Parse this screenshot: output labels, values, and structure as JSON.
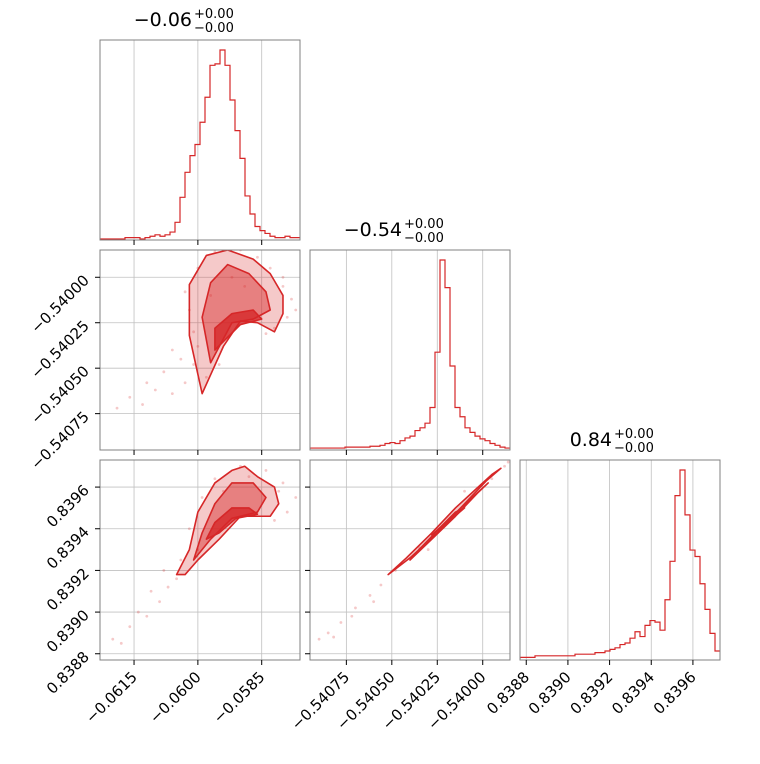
{
  "chart_data": {
    "type": "corner",
    "style": {
      "color": "#d62728",
      "grid": true
    },
    "parameters": [
      {
        "title_main": "−0.06",
        "title_plus": "+0.00",
        "title_minus": "−0.00",
        "range": [
          -0.0623,
          -0.0576
        ],
        "ticks": [
          -0.0615,
          -0.06,
          -0.0585
        ],
        "tick_labels": [
          "−0.0615",
          "−0.0600",
          "−0.0585"
        ]
      },
      {
        "title_main": "−0.54",
        "title_plus": "+0.00",
        "title_minus": "−0.00",
        "range": [
          -0.54095,
          -0.53985
        ],
        "ticks": [
          -0.54075,
          -0.5405,
          -0.54025,
          -0.54
        ],
        "tick_labels": [
          "−0.54075",
          "−0.54050",
          "−0.54025",
          "−0.54000"
        ]
      },
      {
        "title_main": "0.84",
        "title_plus": "+0.00",
        "title_minus": "−0.00",
        "range": [
          0.83877,
          0.83973
        ],
        "ticks": [
          0.8388,
          0.839,
          0.8392,
          0.8394,
          0.8396
        ],
        "tick_labels": [
          "0.8388",
          "0.8390",
          "0.8392",
          "0.8394",
          "0.8396"
        ]
      }
    ],
    "histograms": [
      {
        "edges_start": -0.0623,
        "bin_width": 0.0001175,
        "counts": [
          0,
          0,
          0,
          0,
          0,
          1,
          1,
          1,
          0,
          1,
          2,
          3,
          2,
          3,
          5,
          12,
          30,
          48,
          60,
          68,
          84,
          102,
          125,
          126,
          136,
          125,
          100,
          78,
          58,
          31,
          18,
          9,
          6,
          4,
          2,
          1,
          1,
          2,
          1,
          1
        ]
      },
      {
        "edges_start": -0.54095,
        "bin_width": 2.75e-05,
        "counts": [
          1,
          1,
          1,
          1,
          1,
          1,
          1,
          2,
          2,
          2,
          2,
          2,
          3,
          3,
          4,
          6,
          7,
          6,
          9,
          12,
          14,
          20,
          23,
          28,
          45,
          105,
          205,
          175,
          90,
          45,
          35,
          23,
          18,
          14,
          11,
          9,
          6,
          4,
          2,
          1
        ]
      },
      {
        "edges_start": 0.83877,
        "bin_width": 2.4e-05,
        "counts": [
          1,
          1,
          1,
          2,
          2,
          2,
          2,
          2,
          2,
          2,
          2,
          3,
          3,
          3,
          3,
          4,
          4,
          5,
          6,
          7,
          9,
          10,
          13,
          17,
          14,
          21,
          24,
          23,
          18,
          37,
          61,
          102,
          118,
          90,
          68,
          64,
          47,
          31,
          16,
          5
        ]
      }
    ],
    "scatter_plots": [
      {
        "x_param": 0,
        "y_param": 1,
        "contours": [
          {
            "level": "outer",
            "points": [
              [
                -0.0599,
                -0.54064
              ],
              [
                -0.0602,
                -0.54032
              ],
              [
                -0.0602,
                -0.54004
              ],
              [
                -0.0598,
                -0.53988
              ],
              [
                -0.0593,
                -0.53985
              ],
              [
                -0.0587,
                -0.5399
              ],
              [
                -0.0583,
                -0.53998
              ],
              [
                -0.058,
                -0.5401
              ],
              [
                -0.058,
                -0.5402
              ],
              [
                -0.0582,
                -0.5403
              ],
              [
                -0.0586,
                -0.54025
              ],
              [
                -0.059,
                -0.54024
              ],
              [
                -0.0594,
                -0.54038
              ]
            ]
          },
          {
            "level": "middle",
            "points": [
              [
                -0.0597,
                -0.54047
              ],
              [
                -0.0599,
                -0.54022
              ],
              [
                -0.0597,
                -0.54003
              ],
              [
                -0.0593,
                -0.53993
              ],
              [
                -0.0588,
                -0.53998
              ],
              [
                -0.0584,
                -0.54008
              ],
              [
                -0.0583,
                -0.54018
              ],
              [
                -0.0587,
                -0.54023
              ],
              [
                -0.0592,
                -0.54025
              ]
            ]
          },
          {
            "level": "inner",
            "points": [
              [
                -0.0596,
                -0.5404
              ],
              [
                -0.0596,
                -0.54028
              ],
              [
                -0.0592,
                -0.5402
              ],
              [
                -0.0587,
                -0.54018
              ],
              [
                -0.0585,
                -0.54023
              ],
              [
                -0.059,
                -0.54026
              ]
            ]
          }
        ],
        "points": [
          [
            -0.0619,
            -0.54072
          ],
          [
            -0.0613,
            -0.5407
          ],
          [
            -0.061,
            -0.54062
          ],
          [
            -0.0606,
            -0.54064
          ],
          [
            -0.0603,
            -0.54058
          ],
          [
            -0.0601,
            -0.54048
          ],
          [
            -0.0604,
            -0.54045
          ],
          [
            -0.06,
            -0.54038
          ],
          [
            -0.0601,
            -0.5403
          ],
          [
            -0.0602,
            -0.54018
          ],
          [
            -0.0603,
            -0.54008
          ],
          [
            -0.06,
            -0.53995
          ],
          [
            -0.0596,
            -0.53986
          ],
          [
            -0.059,
            -0.53985
          ],
          [
            -0.0586,
            -0.53989
          ],
          [
            -0.0583,
            -0.53995
          ],
          [
            -0.058,
            -0.54005
          ],
          [
            -0.0578,
            -0.54012
          ],
          [
            -0.0579,
            -0.54022
          ],
          [
            -0.0582,
            -0.54028
          ],
          [
            -0.0584,
            -0.54031
          ],
          [
            -0.0577,
            -0.54018
          ],
          [
            -0.0606,
            -0.5404
          ],
          [
            -0.0608,
            -0.54052
          ],
          [
            -0.0612,
            -0.54058
          ],
          [
            -0.0616,
            -0.54066
          ],
          [
            -0.0598,
            -0.54055
          ],
          [
            -0.0595,
            -0.54048
          ],
          [
            -0.0597,
            -0.5401
          ],
          [
            -0.0592,
            -0.54
          ],
          [
            -0.0589,
            -0.54005
          ],
          [
            -0.058,
            -0.54
          ]
        ]
      },
      {
        "x_param": 0,
        "y_param": 2,
        "contours": [
          {
            "level": "outer",
            "points": [
              [
                -0.0605,
                0.83918
              ],
              [
                -0.0602,
                0.8393
              ],
              [
                -0.06,
                0.83948
              ],
              [
                -0.0596,
                0.83962
              ],
              [
                -0.0592,
                0.83968
              ],
              [
                -0.0589,
                0.8397
              ],
              [
                -0.0586,
                0.83965
              ],
              [
                -0.0582,
                0.8396
              ],
              [
                -0.0581,
                0.83952
              ],
              [
                -0.0583,
                0.83946
              ],
              [
                -0.059,
                0.83946
              ],
              [
                -0.0595,
                0.83935
              ],
              [
                -0.06,
                0.83925
              ],
              [
                -0.0603,
                0.83918
              ]
            ]
          },
          {
            "level": "middle",
            "points": [
              [
                -0.0601,
                0.83925
              ],
              [
                -0.0599,
                0.83938
              ],
              [
                -0.0596,
                0.83952
              ],
              [
                -0.0592,
                0.83962
              ],
              [
                -0.0587,
                0.83962
              ],
              [
                -0.0584,
                0.83955
              ],
              [
                -0.0586,
                0.83948
              ],
              [
                -0.0592,
                0.83945
              ],
              [
                -0.0597,
                0.83935
              ]
            ]
          },
          {
            "level": "inner",
            "points": [
              [
                -0.0598,
                0.83935
              ],
              [
                -0.0596,
                0.83943
              ],
              [
                -0.0592,
                0.8395
              ],
              [
                -0.0588,
                0.8395
              ],
              [
                -0.0586,
                0.83947
              ],
              [
                -0.0591,
                0.83945
              ],
              [
                -0.0595,
                0.83938
              ]
            ]
          }
        ],
        "points": [
          [
            -0.062,
            0.83887
          ],
          [
            -0.0616,
            0.83893
          ],
          [
            -0.0612,
            0.83898
          ],
          [
            -0.0609,
            0.83905
          ],
          [
            -0.0607,
            0.83912
          ],
          [
            -0.0605,
            0.83916
          ],
          [
            -0.0604,
            0.83925
          ],
          [
            -0.0602,
            0.8394
          ],
          [
            -0.0599,
            0.83955
          ],
          [
            -0.0596,
            0.83964
          ],
          [
            -0.059,
            0.8397
          ],
          [
            -0.0584,
            0.83968
          ],
          [
            -0.058,
            0.83962
          ],
          [
            -0.0577,
            0.83955
          ],
          [
            -0.0579,
            0.83948
          ],
          [
            -0.0582,
            0.83944
          ],
          [
            -0.0608,
            0.8392
          ],
          [
            -0.0611,
            0.8391
          ],
          [
            -0.0614,
            0.839
          ],
          [
            -0.0618,
            0.83885
          ],
          [
            -0.06,
            0.8393
          ],
          [
            -0.0594,
            0.83958
          ],
          [
            -0.0588,
            0.83965
          ],
          [
            -0.0581,
            0.83958
          ]
        ]
      },
      {
        "x_param": 1,
        "y_param": 2,
        "contours": [
          {
            "level": "outer",
            "points": [
              [
                -0.54052,
                0.83918
              ],
              [
                -0.5404,
                0.83926
              ],
              [
                -0.54025,
                0.83938
              ],
              [
                -0.5401,
                0.83952
              ],
              [
                -0.53998,
                0.83963
              ],
              [
                -0.5399,
                0.83969
              ],
              [
                -0.53995,
                0.83966
              ],
              [
                -0.54005,
                0.83958
              ],
              [
                -0.54015,
                0.8395
              ],
              [
                -0.54028,
                0.83938
              ],
              [
                -0.54042,
                0.83926
              ]
            ]
          },
          {
            "level": "middle",
            "points": [
              [
                -0.5404,
                0.83925
              ],
              [
                -0.54028,
                0.83935
              ],
              [
                -0.54015,
                0.83946
              ],
              [
                -0.54003,
                0.83957
              ],
              [
                -0.53997,
                0.83962
              ],
              [
                -0.54002,
                0.83958
              ],
              [
                -0.54012,
                0.8395
              ],
              [
                -0.54024,
                0.8394
              ],
              [
                -0.54035,
                0.8393
              ]
            ]
          },
          {
            "level": "inner",
            "points": [
              [
                -0.54028,
                0.83937
              ],
              [
                -0.54018,
                0.83944
              ],
              [
                -0.5401,
                0.8395
              ],
              [
                -0.54015,
                0.83948
              ],
              [
                -0.54023,
                0.83941
              ]
            ]
          }
        ],
        "points": [
          [
            -0.5409,
            0.83887
          ],
          [
            -0.54085,
            0.8389
          ],
          [
            -0.54078,
            0.83895
          ],
          [
            -0.5407,
            0.83902
          ],
          [
            -0.54062,
            0.83908
          ],
          [
            -0.54056,
            0.83913
          ],
          [
            -0.54048,
            0.8392
          ],
          [
            -0.54035,
            0.83931
          ],
          [
            -0.5402,
            0.83943
          ],
          [
            -0.54005,
            0.83956
          ],
          [
            -0.53995,
            0.83964
          ],
          [
            -0.53988,
            0.8397
          ],
          [
            -0.53986,
            0.83972
          ],
          [
            -0.5401,
            0.83958
          ],
          [
            -0.5403,
            0.8393
          ],
          [
            -0.5406,
            0.83905
          ],
          [
            -0.54072,
            0.83898
          ],
          [
            -0.54082,
            0.83888
          ]
        ]
      }
    ]
  }
}
